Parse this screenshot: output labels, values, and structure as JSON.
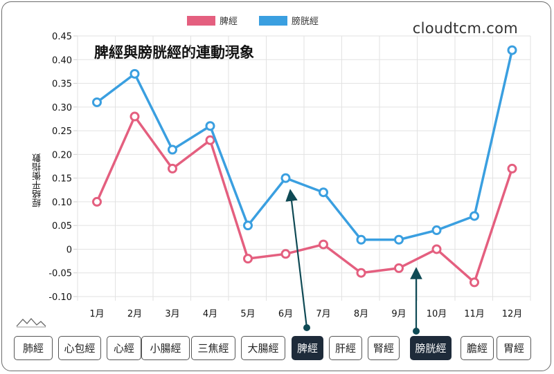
{
  "brand": "cloudtcm.com",
  "chart_data": {
    "type": "line",
    "title": "脾經與膀胱經的連動現象",
    "ylabel": "經絡平衡指數",
    "categories": [
      "1月",
      "2月",
      "3月",
      "4月",
      "5月",
      "6月",
      "7月",
      "8月",
      "9月",
      "10月",
      "11月",
      "12月"
    ],
    "ylim": [
      -0.1,
      0.45
    ],
    "yticks": [
      "0.45",
      "0.40",
      "0.35",
      "0.30",
      "0.25",
      "0.20",
      "0.15",
      "0.10",
      "0.05",
      "0",
      "-0.05",
      "-0.10"
    ],
    "ytick_values": [
      0.45,
      0.4,
      0.35,
      0.3,
      0.25,
      0.2,
      0.15,
      0.1,
      0.05,
      0,
      -0.05,
      -0.1
    ],
    "grid": true,
    "legend_position": "top",
    "series": [
      {
        "name": "脾經",
        "color": "#e45f7f",
        "values": [
          0.1,
          0.28,
          0.17,
          0.23,
          -0.02,
          -0.01,
          0.01,
          -0.05,
          -0.04,
          0.0,
          -0.07,
          0.17
        ]
      },
      {
        "name": "膀胱經",
        "color": "#3a9fe0",
        "values": [
          0.31,
          0.37,
          0.21,
          0.26,
          0.05,
          0.15,
          0.12,
          0.02,
          0.02,
          0.04,
          0.07,
          0.42
        ]
      }
    ],
    "annotations": [
      {
        "type": "arrow",
        "target_category": "6月",
        "target_value": 0.15,
        "color": "#0f4a55"
      },
      {
        "type": "arrow",
        "target_category": "10月",
        "target_value": -0.05,
        "color": "#0f4a55"
      }
    ]
  },
  "tabs": [
    {
      "label": "肺經",
      "active": false
    },
    {
      "label": "心包經",
      "active": false
    },
    {
      "label": "心經",
      "active": false
    },
    {
      "label": "小腸經",
      "active": false
    },
    {
      "label": "三焦經",
      "active": false
    },
    {
      "label": "大腸經",
      "active": false
    },
    {
      "label": "脾經",
      "active": true
    },
    {
      "label": "肝經",
      "active": false
    },
    {
      "label": "腎經",
      "active": false
    },
    {
      "label": "膀胱經",
      "active": true
    },
    {
      "label": "膽經",
      "active": false
    },
    {
      "label": "胃經",
      "active": false
    }
  ],
  "colors": {
    "arrow": "#0f4a55",
    "active_tab": "#1e2b3a",
    "grid": "#e2e2e2"
  }
}
